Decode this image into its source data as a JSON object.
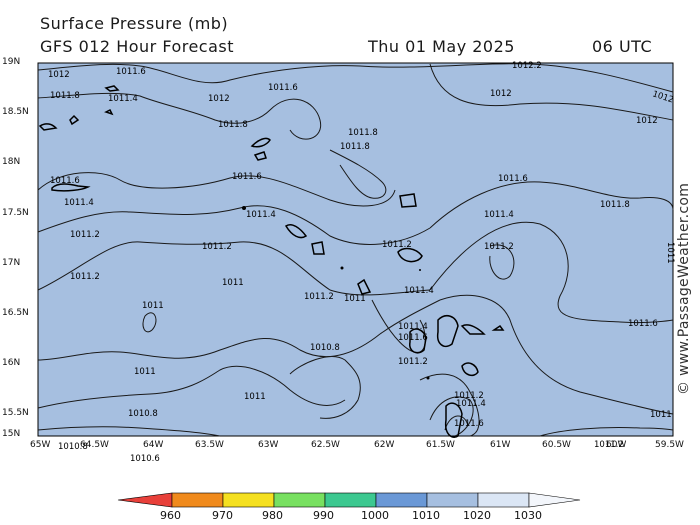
{
  "header": {
    "title": "Surface Pressure (mb)",
    "subtitle": "GFS 012 Hour Forecast",
    "date": "Thu 01 May 2025",
    "time": "06 UTC"
  },
  "credit": "© www.PassageWeather.com",
  "colors": {
    "sea": "#a6bfe0",
    "isobar": "#1a1a1a",
    "coast": "#000000"
  },
  "axes": {
    "lat_labels": [
      "19N",
      "18.5N",
      "18N",
      "17.5N",
      "17N",
      "16.5N",
      "16N",
      "15.5N",
      "15N"
    ],
    "lon_labels": [
      "65W",
      "64.5W",
      "64W",
      "63.5W",
      "63W",
      "62.5W",
      "62W",
      "61.5W",
      "61W",
      "60.5W",
      "60W",
      "59.5W"
    ]
  },
  "isobar_labels": [
    "1012",
    "1011.6",
    "1011.8",
    "1011.4",
    "1012",
    "1011.6",
    "1011.8",
    "1012.2",
    "1012",
    "1012",
    "1012",
    "1011.8",
    "1011.8",
    "1011.6",
    "1011.6",
    "1011.4",
    "1011.6",
    "1011.8",
    "1011.4",
    "1011.4",
    "1011.2",
    "1011.2",
    "1011.2",
    "1011.2",
    "1011.2",
    "1011",
    "1011",
    "1011.2",
    "1011",
    "1011.4",
    "1011.6",
    "1011.4",
    "1011.6",
    "1011",
    "1010.8",
    "1011.2",
    "1011",
    "1011",
    "1010.8",
    "1011.2",
    "1011.4",
    "1011.6",
    "1010.8",
    "1010.6",
    "1011.2",
    "1011"
  ],
  "legend": {
    "labels": [
      "960",
      "970",
      "980",
      "990",
      "1000",
      "1010",
      "1020",
      "1030"
    ],
    "colors": [
      "#e8403a",
      "#f08a1c",
      "#f5e020",
      "#78e060",
      "#3cc890",
      "#6a98d6",
      "#a6bfe0",
      "#dbe6f5"
    ]
  }
}
